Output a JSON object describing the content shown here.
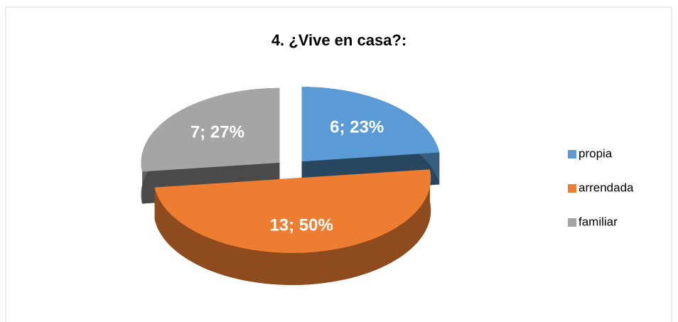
{
  "chart_data": {
    "type": "pie",
    "title": "4. ¿Vive en casa?:",
    "categories": [
      "propia",
      "arrendada",
      "familiar"
    ],
    "values": [
      6,
      13,
      7
    ],
    "value_labels": [
      "6; 23%",
      "13; 50%",
      "7; 27%"
    ],
    "colors": [
      "#5b9bd5",
      "#ed7d31",
      "#a5a5a5"
    ],
    "legend": "right"
  }
}
